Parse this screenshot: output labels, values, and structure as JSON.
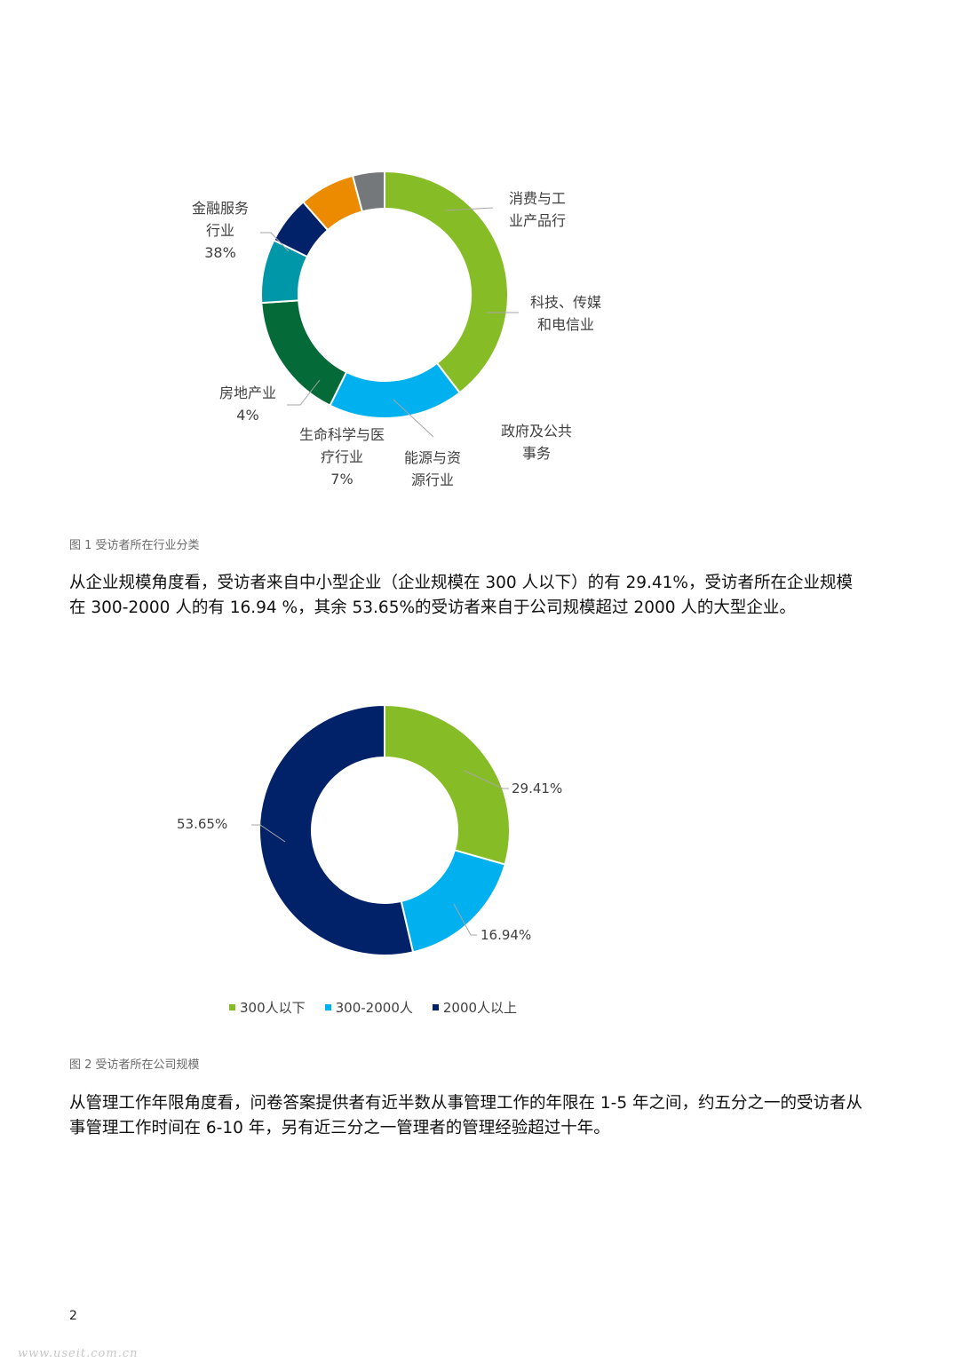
{
  "chart_data": [
    {
      "type": "pie",
      "hole": true,
      "categories": [
        "金融服务行业",
        "消费与工业产品行",
        "科技、传媒和电信业",
        "政府及公共事务",
        "能源与资源行业",
        "生命科学与医疗行业",
        "房地产业"
      ],
      "values": [
        38,
        17,
        16,
        8,
        6,
        7,
        4
      ],
      "colors": [
        "#86bc25",
        "#00b0ef",
        "#046a38",
        "#0097a9",
        "#012169",
        "#ed8b00",
        "#75787b"
      ],
      "value_labels": {
        "金融服务行业": "38%",
        "生命科学与医疗行业": "7%",
        "房地产业": "4%"
      }
    },
    {
      "type": "pie",
      "hole": true,
      "categories": [
        "300人以下",
        "300-2000人",
        "2000人以上"
      ],
      "values": [
        29.41,
        16.94,
        53.65
      ],
      "colors": [
        "#86bc25",
        "#00b0ef",
        "#012169"
      ],
      "legend": "bottom"
    }
  ],
  "chart1": {
    "labels": {
      "finance_1": "金融服务",
      "finance_2": "行业",
      "finance_3": "38%",
      "consumer_1": "消费与工",
      "consumer_2": "业产品行",
      "tmt_1": "科技、传媒",
      "tmt_2": "和电信业",
      "gov_1": "政府及公共",
      "gov_2": "事务",
      "energy_1": "能源与资",
      "energy_2": "源行业",
      "life_1": "生命科学与医",
      "life_2": "疗行业",
      "life_3": "7%",
      "realestate_1": "房地产业",
      "realestate_2": "4%"
    },
    "caption": "图 1 受访者所在行业分类"
  },
  "paragraph1": "从企业规模角度看，受访者来自中小型企业（企业规模在 300 人以下）的有 29.41%，受访者所在企业规模在 300-2000 人的有 16.94 %，其余 53.65%的受访者来自于公司规模超过 2000 人的大型企业。",
  "chart2": {
    "labels": {
      "small": "29.41%",
      "medium": "16.94%",
      "large": "53.65%"
    },
    "legend": [
      "300人以下",
      "300-2000人",
      "2000人以上"
    ],
    "caption": "图 2 受访者所在公司规模"
  },
  "paragraph2": "从管理工作年限角度看，问卷答案提供者有近半数从事管理工作的年限在 1-5 年之间，约五分之一的受访者从事管理工作时间在 6-10 年，另有近三分之一管理者的管理经验超过十年。",
  "page_number": "2",
  "watermark": "www.useit.com.cn"
}
